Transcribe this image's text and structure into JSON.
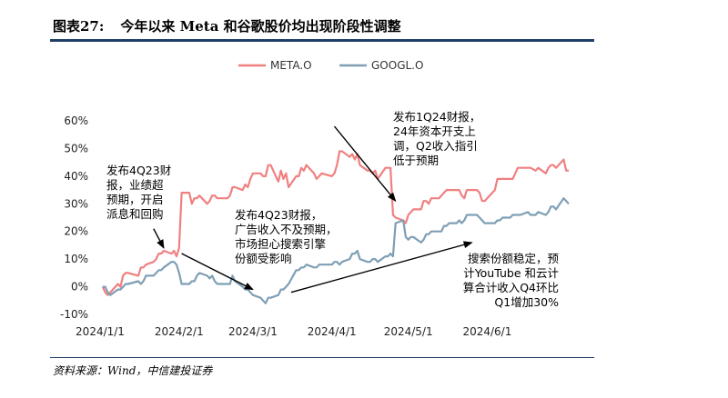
{
  "figure": {
    "number": "图表27:",
    "title": "今年以来 Meta 和谷歌股价均出现阶段性调整",
    "source": "资料来源：Wind，中信建投证券"
  },
  "colors": {
    "meta": "#f08080",
    "googl": "#7f9fb5",
    "rule": "#1f3f66"
  },
  "chart_data": {
    "type": "line",
    "title": "",
    "xlabel": "",
    "ylabel": "",
    "ylim": [
      -0.1,
      0.6
    ],
    "yticks": [
      -0.1,
      0.0,
      0.1,
      0.2,
      0.3,
      0.4,
      0.5,
      0.6
    ],
    "ytick_labels": [
      "-10%",
      "0%",
      "10%",
      "20%",
      "30%",
      "40%",
      "50%",
      "60%"
    ],
    "xlim": [
      "2024-01-01",
      "2024-07-03"
    ],
    "xticks": [
      "2024-01-01",
      "2024-02-01",
      "2024-03-01",
      "2024-04-01",
      "2024-05-01",
      "2024-06-01"
    ],
    "xtick_labels": [
      "2024/1/1",
      "2024/2/1",
      "2024/3/1",
      "2024/4/1",
      "2024/5/1",
      "2024/6/1"
    ],
    "legend_position": "top-center",
    "grid": false,
    "series": [
      {
        "name": "META.O",
        "color": "#f08080",
        "points": [
          [
            "2024-01-02",
            0.0
          ],
          [
            "2024-01-03",
            -0.02
          ],
          [
            "2024-01-04",
            -0.03
          ],
          [
            "2024-01-05",
            -0.02
          ],
          [
            "2024-01-08",
            0.01
          ],
          [
            "2024-01-09",
            0.0
          ],
          [
            "2024-01-10",
            0.04
          ],
          [
            "2024-01-11",
            0.05
          ],
          [
            "2024-01-12",
            0.05
          ],
          [
            "2024-01-16",
            0.04
          ],
          [
            "2024-01-17",
            0.07
          ],
          [
            "2024-01-18",
            0.07
          ],
          [
            "2024-01-19",
            0.08
          ],
          [
            "2024-01-22",
            0.09
          ],
          [
            "2024-01-23",
            0.1
          ],
          [
            "2024-01-24",
            0.12
          ],
          [
            "2024-01-25",
            0.12
          ],
          [
            "2024-01-26",
            0.13
          ],
          [
            "2024-01-29",
            0.12
          ],
          [
            "2024-01-30",
            0.13
          ],
          [
            "2024-01-31",
            0.11
          ],
          [
            "2024-02-01",
            0.14
          ],
          [
            "2024-02-02",
            0.34
          ],
          [
            "2024-02-05",
            0.34
          ],
          [
            "2024-02-06",
            0.3
          ],
          [
            "2024-02-07",
            0.32
          ],
          [
            "2024-02-08",
            0.32
          ],
          [
            "2024-02-09",
            0.33
          ],
          [
            "2024-02-12",
            0.3
          ],
          [
            "2024-02-13",
            0.31
          ],
          [
            "2024-02-14",
            0.33
          ],
          [
            "2024-02-15",
            0.33
          ],
          [
            "2024-02-16",
            0.32
          ],
          [
            "2024-02-20",
            0.32
          ],
          [
            "2024-02-21",
            0.33
          ],
          [
            "2024-02-22",
            0.36
          ],
          [
            "2024-02-23",
            0.36
          ],
          [
            "2024-02-26",
            0.35
          ],
          [
            "2024-02-27",
            0.37
          ],
          [
            "2024-02-28",
            0.36
          ],
          [
            "2024-02-29",
            0.39
          ],
          [
            "2024-03-01",
            0.41
          ],
          [
            "2024-03-04",
            0.41
          ],
          [
            "2024-03-05",
            0.4
          ],
          [
            "2024-03-06",
            0.4
          ],
          [
            "2024-03-07",
            0.44
          ],
          [
            "2024-03-08",
            0.44
          ],
          [
            "2024-03-11",
            0.38
          ],
          [
            "2024-03-12",
            0.42
          ],
          [
            "2024-03-13",
            0.39
          ],
          [
            "2024-03-14",
            0.41
          ],
          [
            "2024-03-15",
            0.36
          ],
          [
            "2024-03-18",
            0.4
          ],
          [
            "2024-03-19",
            0.4
          ],
          [
            "2024-03-20",
            0.43
          ],
          [
            "2024-03-21",
            0.42
          ],
          [
            "2024-03-22",
            0.44
          ],
          [
            "2024-03-25",
            0.41
          ],
          [
            "2024-03-26",
            0.39
          ],
          [
            "2024-03-27",
            0.4
          ],
          [
            "2024-03-28",
            0.41
          ],
          [
            "2024-04-01",
            0.4
          ],
          [
            "2024-04-02",
            0.41
          ],
          [
            "2024-04-03",
            0.44
          ],
          [
            "2024-04-04",
            0.49
          ],
          [
            "2024-04-05",
            0.49
          ],
          [
            "2024-04-08",
            0.47
          ],
          [
            "2024-04-09",
            0.48
          ],
          [
            "2024-04-10",
            0.46
          ],
          [
            "2024-04-11",
            0.48
          ],
          [
            "2024-04-12",
            0.44
          ],
          [
            "2024-04-15",
            0.42
          ],
          [
            "2024-04-16",
            0.42
          ],
          [
            "2024-04-17",
            0.41
          ],
          [
            "2024-04-18",
            0.42
          ],
          [
            "2024-04-19",
            0.39
          ],
          [
            "2024-04-22",
            0.43
          ],
          [
            "2024-04-23",
            0.43
          ],
          [
            "2024-04-24",
            0.43
          ],
          [
            "2024-04-25",
            0.26
          ],
          [
            "2024-04-26",
            0.25
          ],
          [
            "2024-04-29",
            0.24
          ],
          [
            "2024-04-30",
            0.23
          ],
          [
            "2024-05-01",
            0.26
          ],
          [
            "2024-05-02",
            0.27
          ],
          [
            "2024-05-03",
            0.28
          ],
          [
            "2024-05-06",
            0.28
          ],
          [
            "2024-05-07",
            0.31
          ],
          [
            "2024-05-08",
            0.31
          ],
          [
            "2024-05-09",
            0.3
          ],
          [
            "2024-05-10",
            0.32
          ],
          [
            "2024-05-13",
            0.32
          ],
          [
            "2024-05-14",
            0.33
          ],
          [
            "2024-05-15",
            0.34
          ],
          [
            "2024-05-16",
            0.35
          ],
          [
            "2024-05-17",
            0.35
          ],
          [
            "2024-05-20",
            0.35
          ],
          [
            "2024-05-21",
            0.35
          ],
          [
            "2024-05-22",
            0.33
          ],
          [
            "2024-05-23",
            0.32
          ],
          [
            "2024-05-24",
            0.35
          ],
          [
            "2024-05-28",
            0.35
          ],
          [
            "2024-05-29",
            0.34
          ],
          [
            "2024-05-30",
            0.31
          ],
          [
            "2024-05-31",
            0.31
          ],
          [
            "2024-06-03",
            0.34
          ],
          [
            "2024-06-04",
            0.35
          ],
          [
            "2024-06-05",
            0.39
          ],
          [
            "2024-06-06",
            0.39
          ],
          [
            "2024-06-07",
            0.39
          ],
          [
            "2024-06-10",
            0.39
          ],
          [
            "2024-06-11",
            0.39
          ],
          [
            "2024-06-12",
            0.41
          ],
          [
            "2024-06-13",
            0.43
          ],
          [
            "2024-06-14",
            0.43
          ],
          [
            "2024-06-17",
            0.43
          ],
          [
            "2024-06-18",
            0.43
          ],
          [
            "2024-06-20",
            0.42
          ],
          [
            "2024-06-21",
            0.43
          ],
          [
            "2024-06-24",
            0.41
          ],
          [
            "2024-06-25",
            0.43
          ],
          [
            "2024-06-26",
            0.44
          ],
          [
            "2024-06-27",
            0.44
          ],
          [
            "2024-06-28",
            0.43
          ],
          [
            "2024-07-01",
            0.46
          ],
          [
            "2024-07-02",
            0.42
          ],
          [
            "2024-07-03",
            0.42
          ]
        ]
      },
      {
        "name": "GOOGL.O",
        "color": "#7f9fb5",
        "points": [
          [
            "2024-01-02",
            0.0
          ],
          [
            "2024-01-03",
            0.0
          ],
          [
            "2024-01-04",
            -0.02
          ],
          [
            "2024-01-05",
            -0.03
          ],
          [
            "2024-01-08",
            -0.01
          ],
          [
            "2024-01-09",
            -0.01
          ],
          [
            "2024-01-10",
            0.0
          ],
          [
            "2024-01-11",
            0.01
          ],
          [
            "2024-01-12",
            0.01
          ],
          [
            "2024-01-16",
            0.02
          ],
          [
            "2024-01-17",
            0.01
          ],
          [
            "2024-01-18",
            0.02
          ],
          [
            "2024-01-19",
            0.04
          ],
          [
            "2024-01-22",
            0.04
          ],
          [
            "2024-01-23",
            0.05
          ],
          [
            "2024-01-24",
            0.06
          ],
          [
            "2024-01-25",
            0.06
          ],
          [
            "2024-01-26",
            0.07
          ],
          [
            "2024-01-29",
            0.09
          ],
          [
            "2024-01-30",
            0.09
          ],
          [
            "2024-01-31",
            0.08
          ],
          [
            "2024-02-01",
            0.05
          ],
          [
            "2024-02-02",
            0.01
          ],
          [
            "2024-02-05",
            0.01
          ],
          [
            "2024-02-06",
            0.02
          ],
          [
            "2024-02-07",
            0.02
          ],
          [
            "2024-02-08",
            0.04
          ],
          [
            "2024-02-09",
            0.05
          ],
          [
            "2024-02-12",
            0.04
          ],
          [
            "2024-02-13",
            0.03
          ],
          [
            "2024-02-14",
            0.04
          ],
          [
            "2024-02-15",
            0.02
          ],
          [
            "2024-02-16",
            0.01
          ],
          [
            "2024-02-20",
            0.01
          ],
          [
            "2024-02-21",
            0.01
          ],
          [
            "2024-02-22",
            0.04
          ],
          [
            "2024-02-23",
            0.02
          ],
          [
            "2024-02-26",
            0.0
          ],
          [
            "2024-02-27",
            -0.01
          ],
          [
            "2024-02-28",
            -0.01
          ],
          [
            "2024-02-29",
            -0.02
          ],
          [
            "2024-03-01",
            -0.03
          ],
          [
            "2024-03-04",
            -0.04
          ],
          [
            "2024-03-05",
            -0.05
          ],
          [
            "2024-03-06",
            -0.06
          ],
          [
            "2024-03-07",
            -0.04
          ],
          [
            "2024-03-08",
            -0.04
          ],
          [
            "2024-03-11",
            -0.03
          ],
          [
            "2024-03-12",
            -0.01
          ],
          [
            "2024-03-13",
            -0.01
          ],
          [
            "2024-03-14",
            0.0
          ],
          [
            "2024-03-15",
            0.01
          ],
          [
            "2024-03-18",
            0.06
          ],
          [
            "2024-03-19",
            0.06
          ],
          [
            "2024-03-20",
            0.07
          ],
          [
            "2024-03-21",
            0.07
          ],
          [
            "2024-03-22",
            0.08
          ],
          [
            "2024-03-25",
            0.07
          ],
          [
            "2024-03-26",
            0.07
          ],
          [
            "2024-03-27",
            0.08
          ],
          [
            "2024-03-28",
            0.08
          ],
          [
            "2024-04-01",
            0.08
          ],
          [
            "2024-04-02",
            0.09
          ],
          [
            "2024-04-03",
            0.09
          ],
          [
            "2024-04-04",
            0.08
          ],
          [
            "2024-04-05",
            0.09
          ],
          [
            "2024-04-08",
            0.1
          ],
          [
            "2024-04-09",
            0.12
          ],
          [
            "2024-04-10",
            0.12
          ],
          [
            "2024-04-11",
            0.13
          ],
          [
            "2024-04-12",
            0.1
          ],
          [
            "2024-04-15",
            0.09
          ],
          [
            "2024-04-16",
            0.09
          ],
          [
            "2024-04-17",
            0.1
          ],
          [
            "2024-04-18",
            0.1
          ],
          [
            "2024-04-19",
            0.09
          ],
          [
            "2024-04-22",
            0.11
          ],
          [
            "2024-04-23",
            0.11
          ],
          [
            "2024-04-24",
            0.12
          ],
          [
            "2024-04-25",
            0.11
          ],
          [
            "2024-04-26",
            0.23
          ],
          [
            "2024-04-29",
            0.24
          ],
          [
            "2024-04-30",
            0.18
          ],
          [
            "2024-05-01",
            0.17
          ],
          [
            "2024-05-02",
            0.18
          ],
          [
            "2024-05-03",
            0.18
          ],
          [
            "2024-05-06",
            0.16
          ],
          [
            "2024-05-07",
            0.17
          ],
          [
            "2024-05-08",
            0.19
          ],
          [
            "2024-05-09",
            0.19
          ],
          [
            "2024-05-10",
            0.2
          ],
          [
            "2024-05-13",
            0.2
          ],
          [
            "2024-05-14",
            0.2
          ],
          [
            "2024-05-15",
            0.22
          ],
          [
            "2024-05-16",
            0.22
          ],
          [
            "2024-05-17",
            0.23
          ],
          [
            "2024-05-20",
            0.23
          ],
          [
            "2024-05-21",
            0.24
          ],
          [
            "2024-05-22",
            0.23
          ],
          [
            "2024-05-23",
            0.24
          ],
          [
            "2024-05-24",
            0.26
          ],
          [
            "2024-05-28",
            0.26
          ],
          [
            "2024-05-29",
            0.25
          ],
          [
            "2024-05-30",
            0.24
          ],
          [
            "2024-05-31",
            0.23
          ],
          [
            "2024-06-03",
            0.23
          ],
          [
            "2024-06-04",
            0.23
          ],
          [
            "2024-06-05",
            0.24
          ],
          [
            "2024-06-06",
            0.24
          ],
          [
            "2024-06-07",
            0.25
          ],
          [
            "2024-06-10",
            0.25
          ],
          [
            "2024-06-11",
            0.26
          ],
          [
            "2024-06-12",
            0.26
          ],
          [
            "2024-06-13",
            0.26
          ],
          [
            "2024-06-14",
            0.26
          ],
          [
            "2024-06-17",
            0.27
          ],
          [
            "2024-06-18",
            0.26
          ],
          [
            "2024-06-20",
            0.26
          ],
          [
            "2024-06-21",
            0.27
          ],
          [
            "2024-06-24",
            0.26
          ],
          [
            "2024-06-25",
            0.27
          ],
          [
            "2024-06-26",
            0.29
          ],
          [
            "2024-06-27",
            0.29
          ],
          [
            "2024-06-28",
            0.28
          ],
          [
            "2024-07-01",
            0.32
          ],
          [
            "2024-07-02",
            0.31
          ],
          [
            "2024-07-03",
            0.3
          ]
        ]
      }
    ],
    "annotations": [
      {
        "lines": [
          "发布4Q23财",
          "报，业绩超",
          "预期，开启",
          "派息和回购"
        ],
        "arrow_from": [
          "2024-01-22",
          0.21
        ],
        "arrow_to": [
          "2024-01-26",
          0.14
        ]
      },
      {
        "lines": [
          "发布4Q23财报，",
          "广告收入不及预期，",
          "市场担心搜索引擎",
          "份额受影响"
        ],
        "arrow_from": [
          "2024-02-02",
          0.12
        ],
        "arrow_to": [
          "2024-03-01",
          -0.01
        ]
      },
      {
        "lines": [
          "发布1Q24财报，",
          "24年资本开支上",
          "调，Q2收入指引",
          "低于预期"
        ],
        "arrow_from": [
          "2024-04-02",
          0.58
        ],
        "arrow_to": [
          "2024-04-26",
          0.31
        ]
      },
      {
        "lines": [
          "搜索份额稳定，预",
          "计YouTube 和云计",
          "算合计收入Q4环比",
          "Q1增加30%"
        ],
        "arrow_from": [
          "2024-03-16",
          -0.02
        ],
        "arrow_to": [
          "2024-05-26",
          0.16
        ]
      }
    ]
  }
}
